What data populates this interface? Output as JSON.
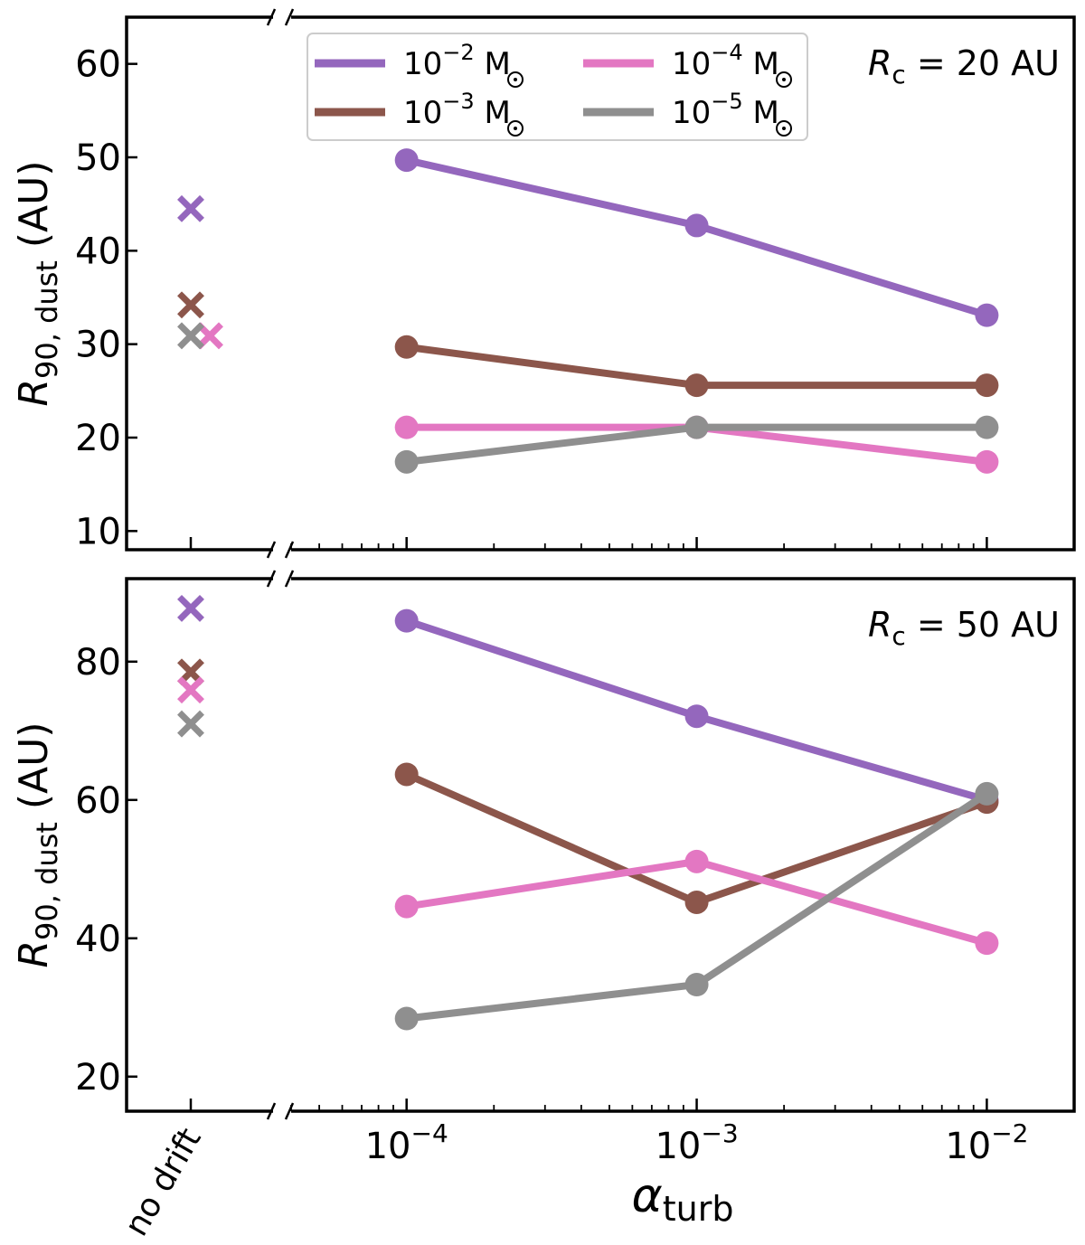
{
  "colors": {
    "m1e-2": "#9467bd",
    "m1e-3": "#8c564b",
    "m1e-4": "#e377c2",
    "m1e-5": "#8f8f8f"
  },
  "chart_data": [
    {
      "type": "line",
      "panel": "top",
      "annotation": {
        "symbol": "R",
        "sub": "c",
        "text": " = 20 AU"
      },
      "ylabel": {
        "symbol": "R",
        "sub": "90, dust",
        "unit": " (AU)"
      },
      "xscale": "log",
      "xlim": [
        4e-05,
        0.02
      ],
      "ylim": [
        8,
        65
      ],
      "yticks": [
        10,
        20,
        30,
        40,
        50,
        60
      ],
      "legend": "top-center",
      "nodrift_label": "no drift",
      "x": [
        0.0001,
        0.001,
        0.01
      ],
      "series": [
        {
          "name": "10^-2 M_sun",
          "key": "m1e-2",
          "label_base": "10",
          "label_exp": "−2",
          "label_unit": " M",
          "values": [
            49.7,
            42.7,
            33.1
          ],
          "nodrift": 44.5
        },
        {
          "name": "10^-3 M_sun",
          "key": "m1e-3",
          "label_base": "10",
          "label_exp": "−3",
          "label_unit": " M",
          "values": [
            29.7,
            25.6,
            25.6
          ],
          "nodrift": 34.2
        },
        {
          "name": "10^-4 M_sun",
          "key": "m1e-4",
          "label_base": "10",
          "label_exp": "−4",
          "label_unit": " M",
          "values": [
            21.1,
            21.1,
            17.4
          ],
          "nodrift": 30.9
        },
        {
          "name": "10^-5 M_sun",
          "key": "m1e-5",
          "label_base": "10",
          "label_exp": "−5",
          "label_unit": " M",
          "values": [
            17.4,
            21.1,
            21.1
          ],
          "nodrift": 30.9
        }
      ]
    },
    {
      "type": "line",
      "panel": "bottom",
      "annotation": {
        "symbol": "R",
        "sub": "c",
        "text": " = 50 AU"
      },
      "ylabel": {
        "symbol": "R",
        "sub": "90, dust",
        "unit": " (AU)"
      },
      "xlabel": {
        "symbol": "α",
        "sub": "turb"
      },
      "xscale": "log",
      "xlim": [
        4e-05,
        0.02
      ],
      "ylim": [
        15,
        92
      ],
      "yticks": [
        20,
        40,
        60,
        80
      ],
      "xticklabels": [
        {
          "base": "10",
          "exp": "−4"
        },
        {
          "base": "10",
          "exp": "−3"
        },
        {
          "base": "10",
          "exp": "−2"
        }
      ],
      "nodrift_label": "no drift",
      "x": [
        0.0001,
        0.001,
        0.01
      ],
      "series": [
        {
          "name": "10^-2 M_sun",
          "key": "m1e-2",
          "values": [
            85.9,
            72.1,
            60.0
          ],
          "nodrift": 87.7
        },
        {
          "name": "10^-3 M_sun",
          "key": "m1e-3",
          "values": [
            63.7,
            45.2,
            59.7
          ],
          "nodrift": 78.5
        },
        {
          "name": "10^-4 M_sun",
          "key": "m1e-4",
          "values": [
            44.6,
            51.1,
            39.3
          ],
          "nodrift": 75.9
        },
        {
          "name": "10^-5 M_sun",
          "key": "m1e-5",
          "values": [
            28.4,
            33.3,
            60.9
          ],
          "nodrift": 71.0
        }
      ]
    }
  ]
}
